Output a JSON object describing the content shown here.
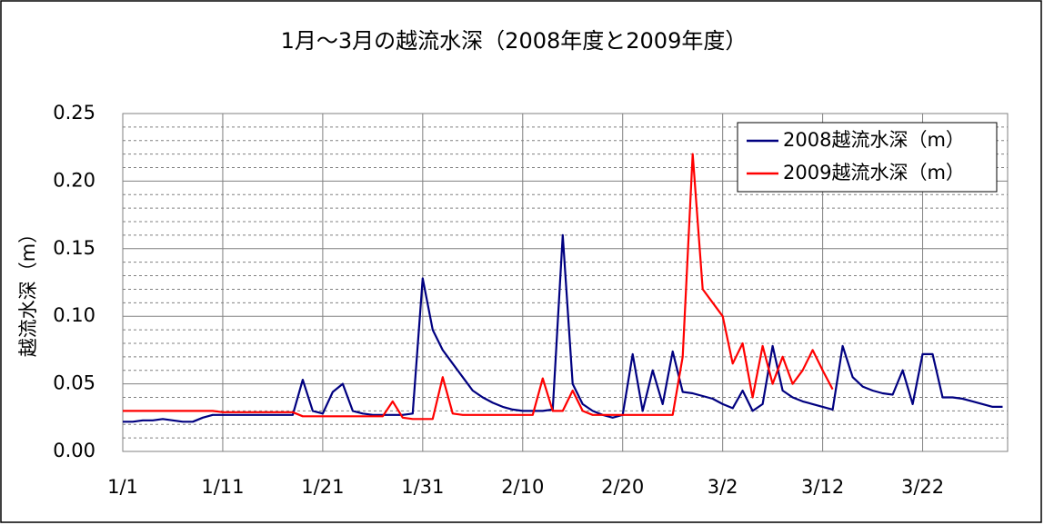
{
  "chart_data": {
    "type": "line",
    "title": "1月～3月の越流水深（2008年度と2009年度）",
    "y_label": "越流水深（m）",
    "categories": [
      "1/1",
      null,
      null,
      null,
      null,
      null,
      null,
      null,
      null,
      null,
      "1/11",
      null,
      null,
      null,
      null,
      null,
      null,
      null,
      null,
      null,
      "1/21",
      null,
      null,
      null,
      null,
      null,
      null,
      null,
      null,
      null,
      "1/31",
      null,
      null,
      null,
      null,
      null,
      null,
      null,
      null,
      null,
      "2/10",
      null,
      null,
      null,
      null,
      null,
      null,
      null,
      null,
      null,
      "2/20",
      null,
      null,
      null,
      null,
      null,
      null,
      null,
      null,
      null,
      "3/2",
      null,
      null,
      null,
      null,
      null,
      null,
      null,
      null,
      null,
      "3/12",
      null,
      null,
      null,
      null,
      null,
      null,
      null,
      null,
      null,
      "3/22",
      null,
      null,
      null,
      null,
      null,
      null,
      null,
      null
    ],
    "series": [
      {
        "name": "2008越流水深（m）",
        "color": "#000080",
        "values": [
          0.022,
          0.022,
          0.023,
          0.023,
          0.024,
          0.023,
          0.022,
          0.022,
          0.025,
          0.027,
          0.027,
          0.027,
          0.027,
          0.027,
          0.027,
          0.027,
          0.027,
          0.027,
          0.053,
          0.03,
          0.028,
          0.044,
          0.05,
          0.03,
          0.028,
          0.027,
          0.027,
          0.027,
          0.027,
          0.028,
          0.128,
          0.09,
          0.075,
          0.065,
          0.055,
          0.045,
          0.04,
          0.036,
          0.033,
          0.031,
          0.03,
          0.03,
          0.03,
          0.031,
          0.16,
          0.05,
          0.035,
          0.03,
          0.027,
          0.025,
          0.027,
          0.072,
          0.03,
          0.06,
          0.035,
          0.074,
          0.044,
          0.043,
          0.041,
          0.039,
          0.035,
          0.032,
          0.045,
          0.03,
          0.035,
          0.078,
          0.045,
          0.04,
          0.037,
          0.035,
          0.033,
          0.031,
          0.078,
          0.055,
          0.048,
          0.045,
          0.043,
          0.042,
          0.06,
          0.035,
          0.072,
          0.072,
          0.04,
          0.04,
          0.039,
          0.037,
          0.035,
          0.033,
          0.033
        ]
      },
      {
        "name": "2009越流水深（m）",
        "color": "#ff0000",
        "values": [
          0.03,
          0.03,
          0.03,
          0.03,
          0.03,
          0.03,
          0.03,
          0.03,
          0.03,
          0.03,
          0.029,
          0.029,
          0.029,
          0.029,
          0.029,
          0.029,
          0.029,
          0.029,
          0.026,
          0.026,
          0.026,
          0.026,
          0.026,
          0.026,
          0.026,
          0.026,
          0.026,
          0.037,
          0.025,
          0.024,
          0.024,
          0.024,
          0.055,
          0.028,
          0.027,
          0.027,
          0.027,
          0.027,
          0.027,
          0.027,
          0.027,
          0.027,
          0.054,
          0.03,
          0.03,
          0.045,
          0.03,
          0.027,
          0.027,
          0.027,
          0.027,
          0.027,
          0.027,
          0.027,
          0.027,
          0.027,
          0.07,
          0.22,
          0.12,
          0.11,
          0.1,
          0.065,
          0.08,
          0.04,
          0.078,
          0.05,
          0.07,
          0.05,
          0.06,
          0.075,
          0.06,
          0.046,
          null,
          null,
          null,
          null,
          null,
          null,
          null,
          null,
          null,
          null,
          null,
          null,
          null,
          null,
          null,
          null,
          null
        ]
      }
    ],
    "ylim": [
      0,
      0.25
    ],
    "yticks": [
      {
        "value": 0,
        "label": "0.00"
      },
      {
        "value": 0.05,
        "label": "0.05"
      },
      {
        "value": 0.1,
        "label": "0.10"
      },
      {
        "value": 0.15,
        "label": "0.15"
      },
      {
        "value": 0.2,
        "label": "0.20"
      },
      {
        "value": 0.25,
        "label": "0.25"
      }
    ],
    "yminorticks": [
      0.01,
      0.02,
      0.03,
      0.04,
      0.06,
      0.07,
      0.08,
      0.09,
      0.11,
      0.12,
      0.13,
      0.14,
      0.16,
      0.17,
      0.18,
      0.19,
      0.21,
      0.22,
      0.23,
      0.24
    ],
    "grid": true,
    "legend": "upper right"
  }
}
